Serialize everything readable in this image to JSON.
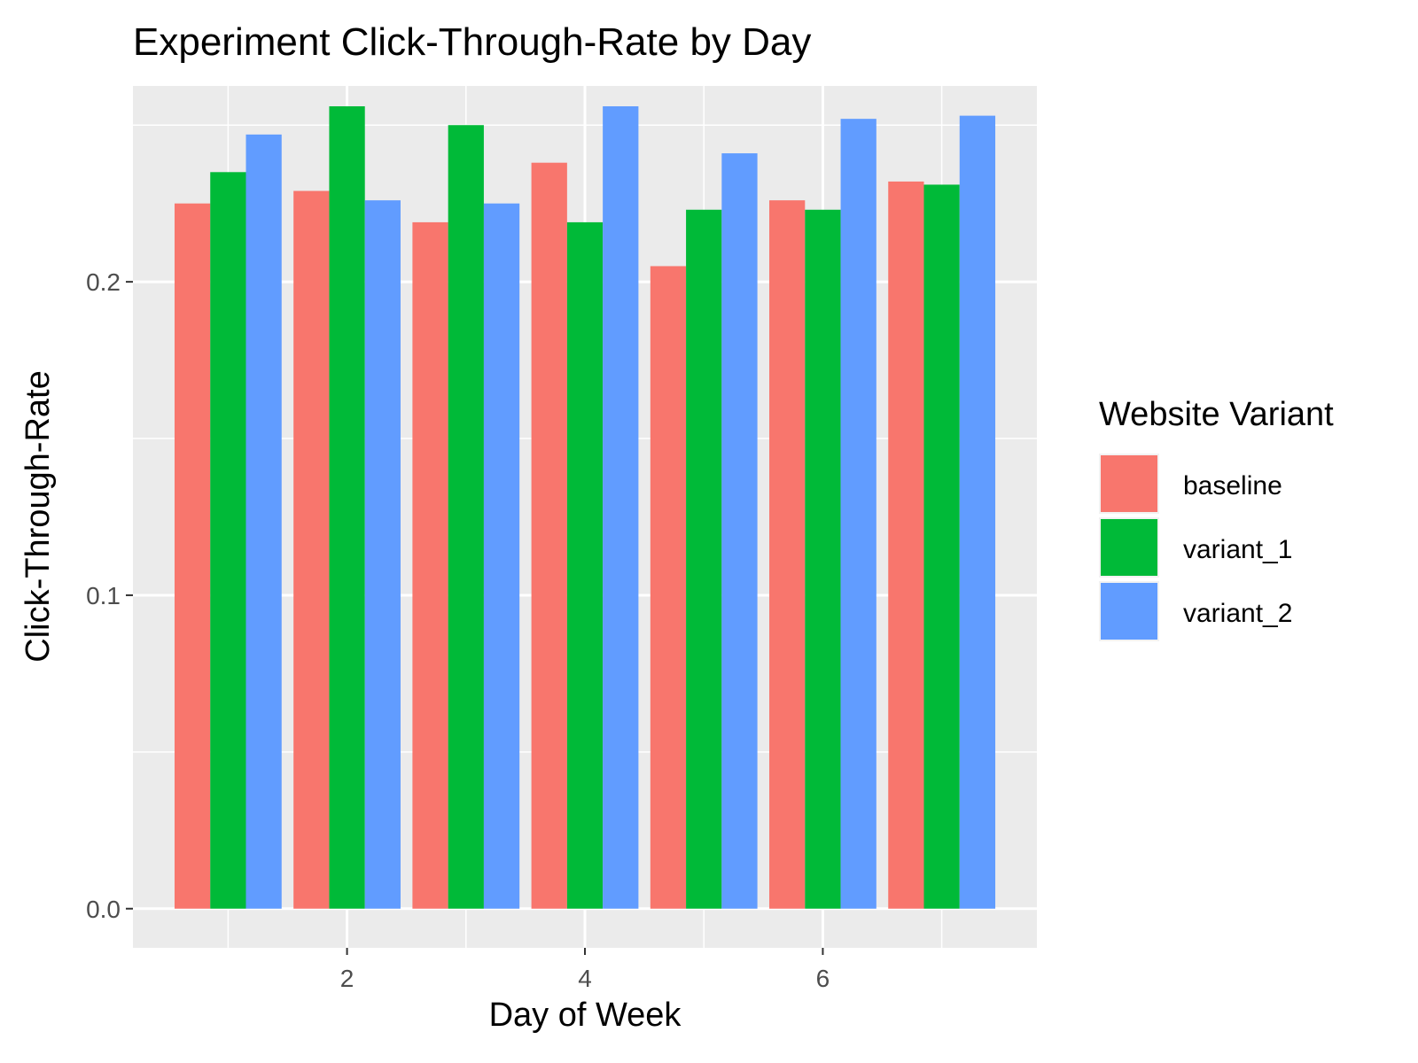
{
  "chart_data": {
    "type": "bar",
    "title": "Experiment Click-Through-Rate by Day",
    "xlabel": "Day of Week",
    "ylabel": "Click-Through-Rate",
    "x": [
      1,
      2,
      3,
      4,
      5,
      6,
      7
    ],
    "xlim": [
      0.2,
      7.8
    ],
    "ylim": [
      -0.0125,
      0.2625
    ],
    "x_ticks": [
      2,
      4,
      6
    ],
    "x_tick_labels": [
      "2",
      "4",
      "6"
    ],
    "y_ticks": [
      0.0,
      0.1,
      0.2
    ],
    "y_tick_labels": [
      "0.0",
      "0.1",
      "0.2"
    ],
    "grid": true,
    "legend": {
      "title": "Website Variant",
      "placement": "right"
    },
    "series": [
      {
        "name": "baseline",
        "color": "#F8766D",
        "values": [
          0.225,
          0.229,
          0.219,
          0.238,
          0.205,
          0.226,
          0.232
        ]
      },
      {
        "name": "variant_1",
        "color": "#00BA38",
        "values": [
          0.235,
          0.256,
          0.25,
          0.219,
          0.223,
          0.223,
          0.231
        ]
      },
      {
        "name": "variant_2",
        "color": "#619CFF",
        "values": [
          0.247,
          0.226,
          0.225,
          0.256,
          0.241,
          0.252,
          0.253
        ]
      }
    ]
  }
}
